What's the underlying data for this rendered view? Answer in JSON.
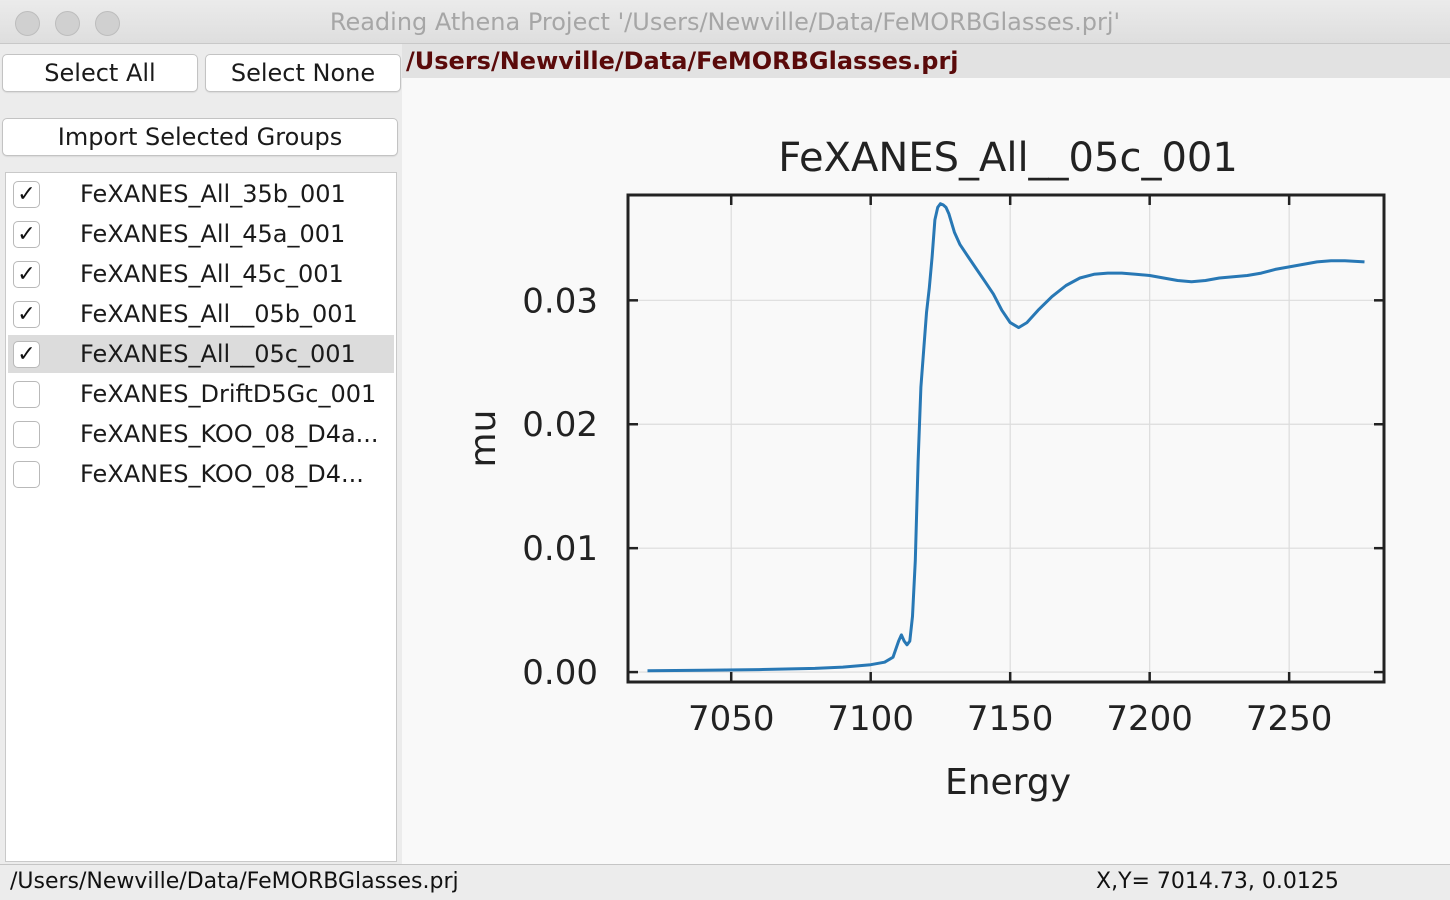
{
  "window": {
    "title": "Reading Athena Project '/Users/Newville/Data/FeMORBGlasses.prj'"
  },
  "buttons": {
    "select_all": "Select All",
    "select_none": "Select None",
    "import_selected": "Import Selected Groups"
  },
  "groups": [
    {
      "label": "FeXANES_All_35b_001",
      "checked": true,
      "selected": false
    },
    {
      "label": "FeXANES_All_45a_001",
      "checked": true,
      "selected": false
    },
    {
      "label": "FeXANES_All_45c_001",
      "checked": true,
      "selected": false
    },
    {
      "label": "FeXANES_All__05b_001",
      "checked": true,
      "selected": false
    },
    {
      "label": "FeXANES_All__05c_001",
      "checked": true,
      "selected": true
    },
    {
      "label": "FeXANES_DriftD5Gc_001",
      "checked": false,
      "selected": false
    },
    {
      "label": "FeXANES_KOO_08_D4a...",
      "checked": false,
      "selected": false
    },
    {
      "label": "FeXANES_KOO_08_D4...",
      "checked": false,
      "selected": false
    }
  ],
  "project_path": "/Users/Newville/Data/FeMORBGlasses.prj",
  "status": {
    "left": "/Users/Newville/Data/FeMORBGlasses.prj",
    "right": "X,Y= 7014.73, 0.0125"
  },
  "colors": {
    "line": "#2878b5",
    "path_text": "#5a0a0a",
    "grid": "#dcdcdc"
  },
  "chart_data": {
    "type": "line",
    "title": "FeXANES_All__05c_001",
    "xlabel": "Energy",
    "ylabel": "mu",
    "xlim": [
      7013,
      7284
    ],
    "ylim": [
      -0.0008,
      0.0385
    ],
    "xticks": [
      7050,
      7100,
      7150,
      7200,
      7250
    ],
    "xtick_labels": [
      "7050",
      "7100",
      "7150",
      "7200",
      "7250"
    ],
    "yticks": [
      0.0,
      0.01,
      0.02,
      0.03
    ],
    "ytick_labels": [
      "0.00",
      "0.01",
      "0.02",
      "0.03"
    ],
    "grid": true,
    "series": [
      {
        "x": [
          7020,
          7040,
          7060,
          7080,
          7090,
          7100,
          7105,
          7108,
          7110,
          7111,
          7112,
          7113,
          7114,
          7115,
          7116,
          7117,
          7118,
          7119,
          7120,
          7121,
          7122,
          7123,
          7124,
          7125,
          7126,
          7127,
          7128,
          7130,
          7132,
          7135,
          7138,
          7141,
          7144,
          7147,
          7150,
          7153,
          7156,
          7160,
          7165,
          7170,
          7175,
          7180,
          7185,
          7190,
          7195,
          7200,
          7205,
          7210,
          7215,
          7220,
          7225,
          7230,
          7235,
          7240,
          7245,
          7250,
          7255,
          7260,
          7265,
          7270,
          7277
        ],
        "y": [
          0.0001,
          0.00015,
          0.0002,
          0.0003,
          0.0004,
          0.0006,
          0.0008,
          0.0012,
          0.0025,
          0.003,
          0.0025,
          0.0022,
          0.0025,
          0.0045,
          0.009,
          0.017,
          0.023,
          0.026,
          0.029,
          0.031,
          0.0335,
          0.0365,
          0.0375,
          0.0378,
          0.0377,
          0.0375,
          0.037,
          0.0355,
          0.0345,
          0.0335,
          0.0325,
          0.0315,
          0.0305,
          0.0292,
          0.0282,
          0.0278,
          0.0282,
          0.0292,
          0.0303,
          0.0312,
          0.0318,
          0.0321,
          0.0322,
          0.0322,
          0.0321,
          0.032,
          0.0318,
          0.0316,
          0.0315,
          0.0316,
          0.0318,
          0.0319,
          0.032,
          0.0322,
          0.0325,
          0.0327,
          0.0329,
          0.0331,
          0.0332,
          0.0332,
          0.0331
        ]
      }
    ]
  }
}
